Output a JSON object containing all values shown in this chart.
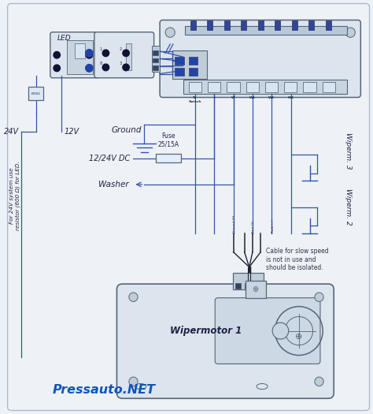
{
  "bg_color": "#eef2f7",
  "line_color": "#3355aa",
  "dark_line_color": "#222233",
  "component_fill": "#dce4ee",
  "component_stroke": "#556677",
  "text_color": "#222244",
  "title_color": "#1155bb",
  "title": "Pressauto.NET",
  "annotations": {
    "led": "LED",
    "ground": "Ground",
    "fuse_label": "Fuse\n25/15A",
    "dc_label": "12/24V DC",
    "washer": "Washer",
    "wipermotor": "Wipermotor 1",
    "wiperm3": "Wiperm. 3",
    "wiperm2": "Wiperm. 2",
    "cable_note": "Cable for slow speed\nis not in use and\nshould be isolated.",
    "v24": "24V",
    "v12": "12V",
    "resistor_note": "For 24V system use\nresistor (600 Ω) for LED."
  }
}
